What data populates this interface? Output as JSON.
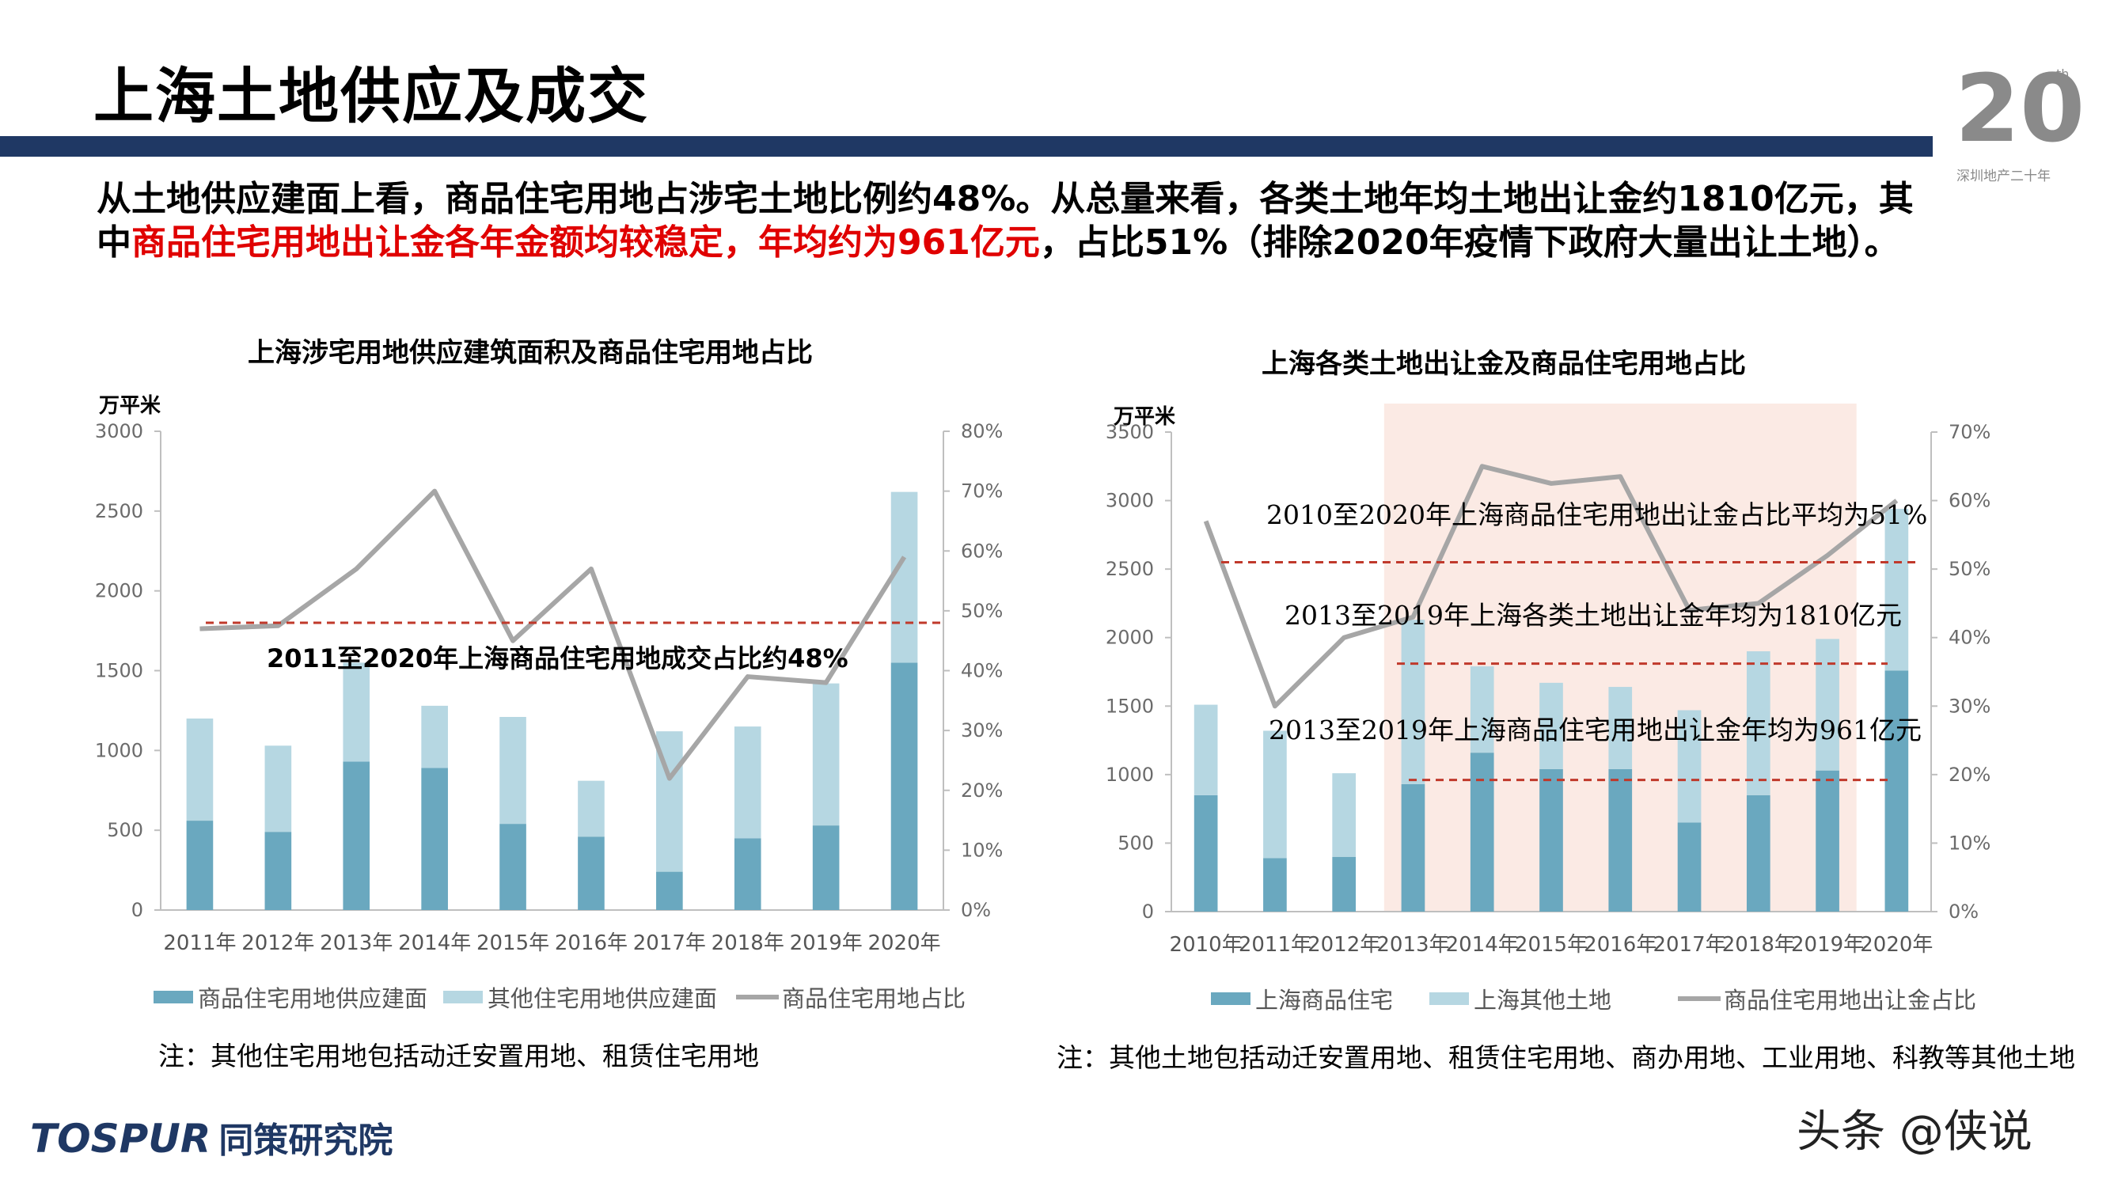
{
  "title": "上海土地供应及成交",
  "logo": {
    "number": "20",
    "sup": "th",
    "subtitle": "深圳地产二十年"
  },
  "summary": {
    "line1": "从土地供应建面上看，商品住宅用地占涉宅土地比例约48%。从总量来看，各类土地年均土地出让金约1810亿元，其",
    "line2_prefix": "中",
    "line2_red": "商品住宅用地出让金各年金额均较稳定，年均约为961亿元",
    "line2_suffix": "，占比51%（排除2020年疫情下政府大量出让土地）。"
  },
  "left_chart": {
    "note": "注：其他住宅用地包括动迁安置用地、租赁住宅用地"
  },
  "right_chart": {
    "note": "注：其他土地包括动迁安置用地、租赁住宅用地、商办用地、工业用地、科教等其他土地"
  },
  "footer": {
    "brand_en": "TOSPUR",
    "brand_cn": "同策研究院",
    "watermark_text": "头条 @侠说"
  },
  "colors": {
    "dark_bar": "#6aa8bf",
    "light_bar": "#b6d7e2",
    "line": "#a6a6a6",
    "ref_line": "#c0392b",
    "highlight": "#fbeae4",
    "navy": "#1f3864",
    "red_text": "#e00000"
  },
  "chart_data": [
    {
      "type": "bar",
      "title": "上海涉宅用地供应建筑面积及商品住宅用地占比",
      "ylabel": "万平米",
      "categories": [
        "2011年",
        "2012年",
        "2013年",
        "2014年",
        "2015年",
        "2016年",
        "2017年",
        "2018年",
        "2019年",
        "2020年"
      ],
      "stacked": true,
      "series": [
        {
          "name": "商品住宅用地供应建面",
          "values": [
            560,
            490,
            930,
            890,
            540,
            460,
            240,
            450,
            530,
            1550
          ]
        },
        {
          "name": "其他住宅用地供应建面",
          "values": [
            640,
            540,
            620,
            390,
            670,
            350,
            880,
            700,
            890,
            1070
          ]
        }
      ],
      "line_series": {
        "name": "商品住宅用地占比",
        "axis": "right",
        "values": [
          47,
          47.5,
          57,
          70,
          45,
          57,
          22,
          39,
          38,
          59
        ]
      },
      "ylim": [
        0,
        3000
      ],
      "yticks": [
        "0",
        "500",
        "1000",
        "1500",
        "2000",
        "2500",
        "3000"
      ],
      "y2lim": [
        0,
        80
      ],
      "y2ticks": [
        "0%",
        "10%",
        "20%",
        "30%",
        "40%",
        "50%",
        "60%",
        "70%",
        "80%"
      ],
      "reference_line": {
        "value": 48,
        "axis": "right"
      },
      "annotations": [
        "2011至2020年上海商品住宅用地成交占比约48%"
      ],
      "legend_position": "bottom"
    },
    {
      "type": "bar",
      "title": "上海各类土地出让金及商品住宅用地占比",
      "ylabel": "万平米",
      "categories": [
        "2010年",
        "2011年",
        "2012年",
        "2013年",
        "2014年",
        "2015年",
        "2016年",
        "2017年",
        "2018年",
        "2019年",
        "2020年"
      ],
      "stacked": true,
      "series": [
        {
          "name": "上海商品住宅",
          "values": [
            850,
            390,
            400,
            930,
            1160,
            1040,
            1040,
            650,
            850,
            1030,
            1760
          ]
        },
        {
          "name": "上海其他土地",
          "values": [
            660,
            930,
            610,
            1200,
            630,
            630,
            600,
            820,
            1050,
            960,
            1180
          ]
        }
      ],
      "line_series": {
        "name": "商品住宅用地出让金占比",
        "axis": "right",
        "values": [
          57,
          30,
          40,
          43,
          65,
          62.5,
          63.5,
          44,
          45,
          52,
          60
        ]
      },
      "ylim": [
        0,
        3500
      ],
      "yticks": [
        "0",
        "500",
        "1000",
        "1500",
        "2000",
        "2500",
        "3000",
        "3500"
      ],
      "y2lim": [
        0,
        70
      ],
      "y2ticks": [
        "0%",
        "10%",
        "20%",
        "30%",
        "40%",
        "50%",
        "60%",
        "70%"
      ],
      "highlight_range": [
        "2013年",
        "2019年"
      ],
      "reference_lines": [
        {
          "value": 51,
          "axis": "right"
        },
        {
          "value": 1810,
          "axis": "left"
        },
        {
          "value": 961,
          "axis": "left"
        }
      ],
      "annotations": [
        "2010至2020年上海商品住宅用地出让金占比平均为51%",
        "2013至2019年上海各类土地出让金年均为1810亿元",
        "2013至2019年上海商品住宅用地出让金年均为961亿元"
      ],
      "legend_position": "bottom"
    }
  ]
}
